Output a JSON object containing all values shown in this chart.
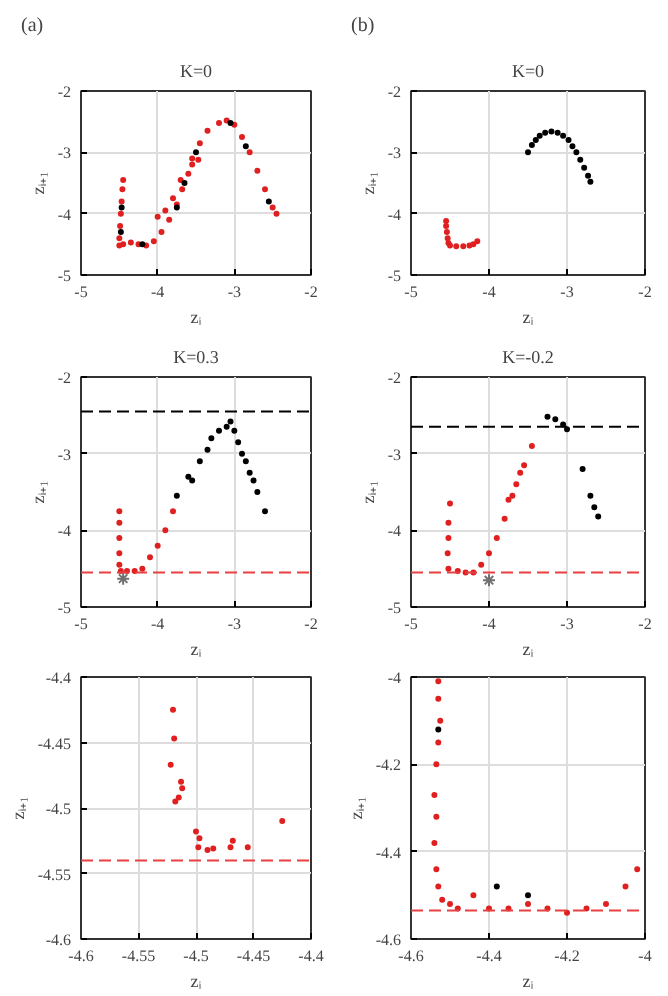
{
  "chart_data": [
    {
      "type": "scatter",
      "annotations": [
        "(a)"
      ],
      "title": "K=0",
      "xlabel": "zᵢ",
      "ylabel": "zᵢ₊₁",
      "xlim": [
        -5,
        -2
      ],
      "ylim": [
        -5,
        -2
      ],
      "xticks": [
        -5,
        -4,
        -3,
        -2
      ],
      "yticks": [
        -5,
        -4,
        -3,
        -2
      ],
      "grid": true,
      "marker": "circle",
      "series": [
        {
          "color": "#e02020",
          "x": [
            -4.45,
            -4.46,
            -4.47,
            -4.48,
            -4.49,
            -4.5,
            -4.5,
            -4.45,
            -4.35,
            -4.25,
            -4.15,
            -4.05,
            -3.95,
            -3.85,
            -3.75,
            -3.68,
            -3.6,
            -3.55,
            -3.45,
            -3.35,
            -3.2,
            -3.1,
            -3.0,
            -2.9,
            -2.8,
            -2.7,
            -2.6,
            -2.5,
            -2.45,
            -4.0,
            -3.9,
            -3.8,
            -3.7,
            -3.55,
            -3.47
          ],
          "values": [
            -3.45,
            -3.6,
            -3.8,
            -4.0,
            -4.2,
            -4.4,
            -4.52,
            -4.5,
            -4.47,
            -4.5,
            -4.52,
            -4.45,
            -4.3,
            -4.1,
            -3.85,
            -3.6,
            -3.35,
            -3.1,
            -2.85,
            -2.65,
            -2.52,
            -2.48,
            -2.55,
            -2.75,
            -3.0,
            -3.3,
            -3.6,
            -3.9,
            -4.0,
            -4.05,
            -3.95,
            -3.75,
            -3.45,
            -3.2,
            -3.12
          ]
        },
        {
          "color": "#000000",
          "x": [
            -4.47,
            -4.48,
            -4.2,
            -3.75,
            -3.65,
            -3.5,
            -3.05,
            -2.85,
            -2.55
          ],
          "values": [
            -3.9,
            -4.3,
            -4.5,
            -3.9,
            -3.5,
            -3.0,
            -2.52,
            -2.9,
            -3.8
          ]
        }
      ]
    },
    {
      "type": "scatter",
      "annotations": [
        "(b)"
      ],
      "title": "K=0",
      "xlabel": "zᵢ",
      "ylabel": "zᵢ₊₁",
      "xlim": [
        -5,
        -2
      ],
      "ylim": [
        -5,
        -2
      ],
      "xticks": [
        -5,
        -4,
        -3,
        -2
      ],
      "yticks": [
        -5,
        -4,
        -3,
        -2
      ],
      "grid": true,
      "marker": "circle",
      "series": [
        {
          "color": "#000000",
          "x": [
            -3.5,
            -3.45,
            -3.4,
            -3.35,
            -3.28,
            -3.2,
            -3.12,
            -3.05,
            -2.98,
            -2.93,
            -2.88,
            -2.83,
            -2.78,
            -2.73,
            -2.7
          ],
          "values": [
            -3.0,
            -2.88,
            -2.8,
            -2.73,
            -2.68,
            -2.66,
            -2.68,
            -2.73,
            -2.8,
            -2.9,
            -3.0,
            -3.12,
            -3.25,
            -3.38,
            -3.48
          ]
        },
        {
          "color": "#e02020",
          "x": [
            -4.55,
            -4.55,
            -4.54,
            -4.53,
            -4.52,
            -4.5,
            -4.42,
            -4.33,
            -4.25,
            -4.2,
            -4.15
          ],
          "values": [
            -4.12,
            -4.2,
            -4.3,
            -4.4,
            -4.48,
            -4.52,
            -4.53,
            -4.53,
            -4.52,
            -4.5,
            -4.45
          ]
        }
      ]
    },
    {
      "type": "scatter",
      "title": "K=0.3",
      "xlabel": "zᵢ",
      "ylabel": "zᵢ₊₁",
      "xlim": [
        -5,
        -2
      ],
      "ylim": [
        -5,
        -2
      ],
      "xticks": [
        -5,
        -4,
        -3,
        -2
      ],
      "yticks": [
        -5,
        -4,
        -3,
        -2
      ],
      "grid": true,
      "marker": "circle",
      "ref_lines": [
        {
          "axis": "y",
          "value": -2.45,
          "color": "#000000",
          "line_style": "dashed"
        },
        {
          "axis": "y",
          "value": -4.55,
          "color": "#e84040",
          "line_style": "dashed"
        }
      ],
      "series": [
        {
          "color": "#000000",
          "x": [
            -3.75,
            -3.6,
            -3.55,
            -3.45,
            -3.35,
            -3.3,
            -3.2,
            -3.1,
            -3.05,
            -3.0,
            -2.95,
            -2.9,
            -2.85,
            -2.8,
            -2.75,
            -2.7,
            -2.6
          ],
          "values": [
            -3.55,
            -3.3,
            -3.35,
            -3.1,
            -2.95,
            -2.8,
            -2.7,
            -2.65,
            -2.58,
            -2.7,
            -2.85,
            -3.0,
            -3.1,
            -3.25,
            -3.35,
            -3.5,
            -3.75
          ]
        },
        {
          "color": "#e02020",
          "x": [
            -4.5,
            -4.5,
            -4.5,
            -4.5,
            -4.5,
            -4.48,
            -4.4,
            -4.3,
            -4.2,
            -4.1,
            -4.0,
            -3.9,
            -3.8
          ],
          "values": [
            -3.75,
            -3.9,
            -4.1,
            -4.3,
            -4.45,
            -4.53,
            -4.53,
            -4.53,
            -4.5,
            -4.35,
            -4.2,
            -4.0,
            -3.75
          ]
        },
        {
          "color": "#707070",
          "marker": "cross",
          "x": [
            -4.45
          ],
          "values": [
            -4.63
          ]
        }
      ]
    },
    {
      "type": "scatter",
      "title": "K=-0.2",
      "xlabel": "zᵢ",
      "ylabel": "zᵢ₊₁",
      "xlim": [
        -5,
        -2
      ],
      "ylim": [
        -5,
        -2
      ],
      "xticks": [
        -5,
        -4,
        -3,
        -2
      ],
      "yticks": [
        -5,
        -4,
        -3,
        -2
      ],
      "grid": true,
      "marker": "circle",
      "ref_lines": [
        {
          "axis": "y",
          "value": -2.65,
          "color": "#000000",
          "line_style": "dashed"
        },
        {
          "axis": "y",
          "value": -4.55,
          "color": "#e84040",
          "line_style": "dashed"
        }
      ],
      "series": [
        {
          "color": "#000000",
          "x": [
            -3.25,
            -3.15,
            -3.05,
            -3.0,
            -2.8,
            -2.7,
            -2.65,
            -2.6
          ],
          "values": [
            -2.52,
            -2.55,
            -2.62,
            -2.68,
            -3.2,
            -3.55,
            -3.7,
            -3.82
          ]
        },
        {
          "color": "#e02020",
          "x": [
            -4.5,
            -4.52,
            -4.52,
            -4.53,
            -4.52,
            -4.4,
            -4.3,
            -4.2,
            -4.1,
            -4.0,
            -3.9,
            -3.8,
            -3.75,
            -3.7,
            -3.65,
            -3.6,
            -3.55,
            -3.45
          ],
          "values": [
            -3.65,
            -3.9,
            -4.1,
            -4.3,
            -4.5,
            -4.53,
            -4.55,
            -4.55,
            -4.45,
            -4.3,
            -4.1,
            -3.85,
            -3.6,
            -3.55,
            -3.4,
            -3.25,
            -3.15,
            -2.9
          ]
        },
        {
          "color": "#707070",
          "marker": "cross",
          "x": [
            -4.0
          ],
          "values": [
            -4.65
          ]
        }
      ]
    },
    {
      "type": "scatter",
      "xlabel": "zᵢ",
      "ylabel": "zᵢ₊₁",
      "xlim": [
        -4.6,
        -4.4
      ],
      "ylim": [
        -4.6,
        -4.4
      ],
      "xticks": [
        -4.6,
        -4.55,
        -4.5,
        -4.45,
        -4.4
      ],
      "yticks": [
        -4.6,
        -4.55,
        -4.5,
        -4.45,
        -4.4
      ],
      "grid": true,
      "marker": "circle",
      "ref_lines": [
        {
          "axis": "y",
          "value": -4.54,
          "color": "#e84040",
          "line_style": "dashed"
        }
      ],
      "series": [
        {
          "color": "#e02020",
          "x": [
            -4.52,
            -4.519,
            -4.522,
            -4.513,
            -4.512,
            -4.515,
            -4.518,
            -4.5,
            -4.497,
            -4.498,
            -4.49,
            -4.485,
            -4.47,
            -4.468,
            -4.455,
            -4.425
          ],
          "values": [
            -4.425,
            -4.447,
            -4.467,
            -4.48,
            -4.485,
            -4.492,
            -4.495,
            -4.518,
            -4.523,
            -4.53,
            -4.532,
            -4.531,
            -4.53,
            -4.525,
            -4.53,
            -4.51
          ]
        }
      ]
    },
    {
      "type": "scatter",
      "xlabel": "zᵢ",
      "ylabel": "zᵢ₊₁",
      "xlim": [
        -4.6,
        -4
      ],
      "ylim": [
        -4.6,
        -4
      ],
      "xticks": [
        -4.6,
        -4.4,
        -4.2,
        -4
      ],
      "yticks": [
        -4.6,
        -4.4,
        -4.2,
        -4
      ],
      "grid": true,
      "marker": "circle",
      "ref_lines": [
        {
          "axis": "y",
          "value": -4.535,
          "color": "#e84040",
          "line_style": "dashed"
        }
      ],
      "series": [
        {
          "color": "#e02020",
          "x": [
            -4.53,
            -4.53,
            -4.525,
            -4.53,
            -4.535,
            -4.54,
            -4.535,
            -4.54,
            -4.535,
            -4.53,
            -4.52,
            -4.5,
            -4.48,
            -4.44,
            -4.4,
            -4.35,
            -4.3,
            -4.25,
            -4.2,
            -4.15,
            -4.1,
            -4.05,
            -4.02
          ],
          "values": [
            -4.01,
            -4.05,
            -4.1,
            -4.15,
            -4.2,
            -4.27,
            -4.32,
            -4.38,
            -4.44,
            -4.48,
            -4.51,
            -4.52,
            -4.53,
            -4.5,
            -4.53,
            -4.53,
            -4.52,
            -4.53,
            -4.54,
            -4.53,
            -4.52,
            -4.48,
            -4.44
          ]
        },
        {
          "color": "#000000",
          "x": [
            -4.53,
            -4.38,
            -4.3
          ],
          "values": [
            -4.12,
            -4.48,
            -4.5
          ]
        }
      ]
    }
  ]
}
